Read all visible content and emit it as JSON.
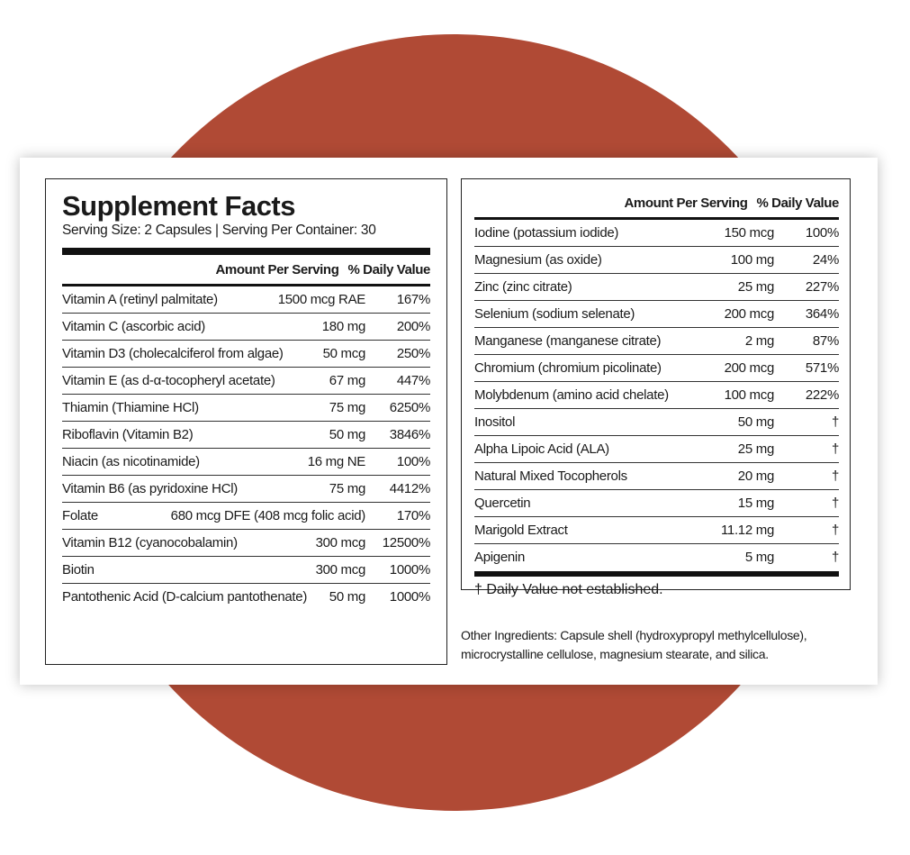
{
  "left": {
    "title": "Supplement Facts",
    "serving": "Serving Size: 2 Capsules | Serving Per Container: 30",
    "header": {
      "amount": "Amount Per Serving",
      "dv": "% Daily Value"
    },
    "rows": [
      [
        "Vitamin A (retinyl palmitate)",
        "1500 mcg RAE",
        "167%"
      ],
      [
        "Vitamin C (ascorbic acid)",
        "180 mg",
        "200%"
      ],
      [
        "Vitamin D3 (cholecalciferol from algae)",
        "50 mcg",
        "250%"
      ],
      [
        "Vitamin E (as d-α-tocopheryl acetate)",
        "67 mg",
        "447%"
      ],
      [
        "Thiamin (Thiamine HCl)",
        "75 mg",
        "6250%"
      ],
      [
        "Riboflavin (Vitamin B2)",
        "50 mg",
        "3846%"
      ],
      [
        "Niacin (as nicotinamide)",
        "16 mg NE",
        "100%"
      ],
      [
        "Vitamin B6 (as pyridoxine HCl)",
        "75 mg",
        "4412%"
      ],
      [
        "Folate",
        "680 mcg DFE (408 mcg folic acid)",
        "170%"
      ],
      [
        "Vitamin B12 (cyanocobalamin)",
        "300 mcg",
        "12500%"
      ],
      [
        "Biotin",
        "300 mcg",
        "1000%"
      ],
      [
        "Pantothenic Acid (D-calcium pantothenate)",
        "50 mg",
        "1000%"
      ]
    ]
  },
  "right": {
    "header": {
      "amount": "Amount Per Serving",
      "dv": "% Daily Value"
    },
    "rows": [
      [
        "Iodine (potassium iodide)",
        "150 mcg",
        "100%"
      ],
      [
        "Magnesium (as oxide)",
        "100 mg",
        "24%"
      ],
      [
        "Zinc (zinc citrate)",
        "25 mg",
        "227%"
      ],
      [
        "Selenium (sodium selenate)",
        "200 mcg",
        "364%"
      ],
      [
        "Manganese (manganese citrate)",
        "2 mg",
        "87%"
      ],
      [
        "Chromium (chromium picolinate)",
        "200 mcg",
        "571%"
      ],
      [
        "Molybdenum (amino acid chelate)",
        "100 mcg",
        "222%"
      ],
      [
        "Inositol",
        "50 mg",
        "†"
      ],
      [
        "Alpha Lipoic Acid (ALA)",
        "25 mg",
        "†"
      ],
      [
        "Natural Mixed Tocopherols",
        "20 mg",
        "†"
      ],
      [
        "Quercetin",
        "15 mg",
        "†"
      ],
      [
        "Marigold Extract",
        "11.12 mg",
        "†"
      ],
      [
        "Apigenin",
        "5 mg",
        "†"
      ]
    ],
    "footnote": "† Daily Value not established.",
    "other": "Other Ingredients: Capsule shell (hydroxypropyl methylcellulose), microcrystalline cellulose, magnesium stearate, and silica."
  }
}
